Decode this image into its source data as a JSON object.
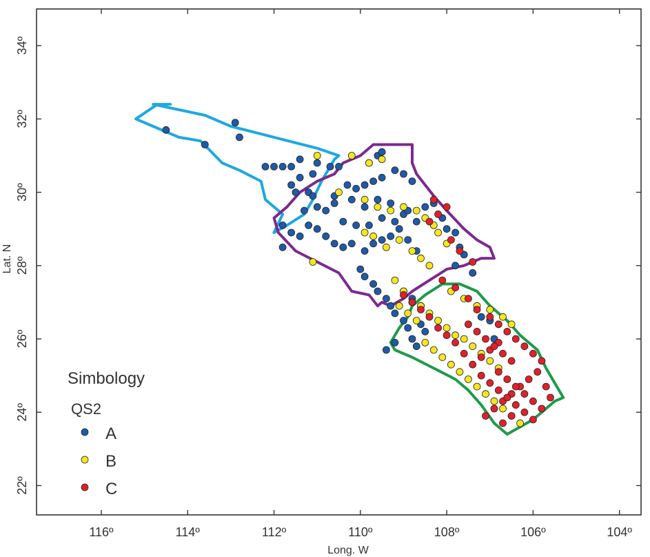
{
  "chart_data": {
    "type": "scatter",
    "xlabel": "Long. W",
    "ylabel": "Lat. N",
    "xlim": [
      117.5,
      103.5
    ],
    "ylim": [
      21.2,
      35.0
    ],
    "x_ticks": [
      116,
      114,
      112,
      110,
      108,
      106,
      104
    ],
    "x_tick_labels": [
      "116º",
      "114º",
      "112º",
      "110º",
      "108º",
      "106º",
      "104º"
    ],
    "y_ticks": [
      22,
      24,
      26,
      28,
      30,
      32,
      34
    ],
    "y_tick_labels": [
      "22º",
      "24º",
      "26º",
      "28º",
      "30º",
      "32º",
      "34º"
    ],
    "legend": {
      "title": "Simbology",
      "subtitle": "QS2",
      "placement": "bottom-left",
      "entries": [
        {
          "label": "A",
          "color": "#1f5aa8"
        },
        {
          "label": "B",
          "color": "#f5e61e"
        },
        {
          "label": "C",
          "color": "#e2202a"
        }
      ]
    },
    "regions": [
      {
        "color": "#1ea8e0",
        "points": [
          [
            114.4,
            32.4
          ],
          [
            114.8,
            32.4
          ],
          [
            113.6,
            32.1
          ],
          [
            113.0,
            31.8
          ],
          [
            112.0,
            31.5
          ],
          [
            111.0,
            31.2
          ],
          [
            110.5,
            31.0
          ],
          [
            110.6,
            30.9
          ],
          [
            110.9,
            30.3
          ],
          [
            111.1,
            29.8
          ],
          [
            111.3,
            29.4
          ],
          [
            111.7,
            29.1
          ],
          [
            112.0,
            28.9
          ],
          [
            111.8,
            29.4
          ],
          [
            112.2,
            29.8
          ],
          [
            112.3,
            30.3
          ],
          [
            112.8,
            30.6
          ],
          [
            113.2,
            30.8
          ],
          [
            113.7,
            31.4
          ],
          [
            114.2,
            31.5
          ],
          [
            114.8,
            31.8
          ],
          [
            115.2,
            32.0
          ],
          [
            114.7,
            32.4
          ],
          [
            114.4,
            32.4
          ]
        ]
      },
      {
        "color": "#7b2a8e",
        "points": [
          [
            109.7,
            31.3
          ],
          [
            108.8,
            31.3
          ],
          [
            108.8,
            30.8
          ],
          [
            108.7,
            30.5
          ],
          [
            108.5,
            30.2
          ],
          [
            108.3,
            29.9
          ],
          [
            108.0,
            29.5
          ],
          [
            107.6,
            29.0
          ],
          [
            107.3,
            28.7
          ],
          [
            107.0,
            28.5
          ],
          [
            106.9,
            28.2
          ],
          [
            107.2,
            28.2
          ],
          [
            107.6,
            28.0
          ],
          [
            108.0,
            27.9
          ],
          [
            108.4,
            27.6
          ],
          [
            108.8,
            27.3
          ],
          [
            109.0,
            27.1
          ],
          [
            109.3,
            26.9
          ],
          [
            109.5,
            27.0
          ],
          [
            109.6,
            26.9
          ],
          [
            109.8,
            27.2
          ],
          [
            110.2,
            27.3
          ],
          [
            110.5,
            27.8
          ],
          [
            111.0,
            28.1
          ],
          [
            111.5,
            28.4
          ],
          [
            111.9,
            28.9
          ],
          [
            112.0,
            29.3
          ],
          [
            111.7,
            29.6
          ],
          [
            111.4,
            30.0
          ],
          [
            111.0,
            30.3
          ],
          [
            110.6,
            30.5
          ],
          [
            110.4,
            30.8
          ],
          [
            110.0,
            31.0
          ],
          [
            109.7,
            31.3
          ]
        ]
      },
      {
        "color": "#1e9a4a",
        "points": [
          [
            108.1,
            27.5
          ],
          [
            107.7,
            27.5
          ],
          [
            107.3,
            27.3
          ],
          [
            107.0,
            26.9
          ],
          [
            106.6,
            26.5
          ],
          [
            106.3,
            26.1
          ],
          [
            105.9,
            25.7
          ],
          [
            105.7,
            25.2
          ],
          [
            105.5,
            24.8
          ],
          [
            105.3,
            24.4
          ],
          [
            105.5,
            24.3
          ],
          [
            105.7,
            24.1
          ],
          [
            106.0,
            23.8
          ],
          [
            106.3,
            23.6
          ],
          [
            106.6,
            23.4
          ],
          [
            106.9,
            23.7
          ],
          [
            107.2,
            24.2
          ],
          [
            107.5,
            24.6
          ],
          [
            107.8,
            24.9
          ],
          [
            108.3,
            25.2
          ],
          [
            108.8,
            25.5
          ],
          [
            109.2,
            25.7
          ],
          [
            109.3,
            25.9
          ],
          [
            109.1,
            26.3
          ],
          [
            108.9,
            26.6
          ],
          [
            108.8,
            26.9
          ],
          [
            108.5,
            27.2
          ],
          [
            108.1,
            27.5
          ]
        ]
      }
    ],
    "series": [
      {
        "name": "A",
        "color": "#1f5aa8",
        "points": [
          [
            114.5,
            31.7
          ],
          [
            113.6,
            31.3
          ],
          [
            112.9,
            31.9
          ],
          [
            112.8,
            31.5
          ],
          [
            112.2,
            30.7
          ],
          [
            112.0,
            30.7
          ],
          [
            111.8,
            30.7
          ],
          [
            111.6,
            30.7
          ],
          [
            111.4,
            30.9
          ],
          [
            111.1,
            30.5
          ],
          [
            111.0,
            30.8
          ],
          [
            110.7,
            30.7
          ],
          [
            110.5,
            30.7
          ],
          [
            109.8,
            30.8
          ],
          [
            109.6,
            31.0
          ],
          [
            109.5,
            31.1
          ],
          [
            111.6,
            30.2
          ],
          [
            111.4,
            30.4
          ],
          [
            111.5,
            30.0
          ],
          [
            111.2,
            30.0
          ],
          [
            111.1,
            29.9
          ],
          [
            111.0,
            29.6
          ],
          [
            110.8,
            29.5
          ],
          [
            110.6,
            29.7
          ],
          [
            110.6,
            29.9
          ],
          [
            110.2,
            29.8
          ],
          [
            109.9,
            29.6
          ],
          [
            109.6,
            29.8
          ],
          [
            109.3,
            29.7
          ],
          [
            109.0,
            29.4
          ],
          [
            108.7,
            29.2
          ],
          [
            110.3,
            30.2
          ],
          [
            110.1,
            30.1
          ],
          [
            109.9,
            30.2
          ],
          [
            109.7,
            30.3
          ],
          [
            109.5,
            30.4
          ],
          [
            109.2,
            30.6
          ],
          [
            109.0,
            30.5
          ],
          [
            108.8,
            30.3
          ],
          [
            111.8,
            29.1
          ],
          [
            111.6,
            28.9
          ],
          [
            111.4,
            28.8
          ],
          [
            111.2,
            29.1
          ],
          [
            111.0,
            29.0
          ],
          [
            110.8,
            28.8
          ],
          [
            110.6,
            28.6
          ],
          [
            110.4,
            28.5
          ],
          [
            110.2,
            28.6
          ],
          [
            109.9,
            28.4
          ],
          [
            109.7,
            28.6
          ],
          [
            109.5,
            28.7
          ],
          [
            109.3,
            28.8
          ],
          [
            109.1,
            29.0
          ],
          [
            108.9,
            28.7
          ],
          [
            108.7,
            28.4
          ],
          [
            110.0,
            27.9
          ],
          [
            109.9,
            27.7
          ],
          [
            109.7,
            27.5
          ],
          [
            109.6,
            27.3
          ],
          [
            109.4,
            27.1
          ],
          [
            109.3,
            26.9
          ],
          [
            109.2,
            26.7
          ],
          [
            109.0,
            26.5
          ],
          [
            108.9,
            26.3
          ],
          [
            108.8,
            26.0
          ],
          [
            108.7,
            25.8
          ],
          [
            109.2,
            25.9
          ],
          [
            109.4,
            25.7
          ],
          [
            108.6,
            26.4
          ],
          [
            108.5,
            26.2
          ],
          [
            109.0,
            27.3
          ],
          [
            108.8,
            27.1
          ],
          [
            108.6,
            26.9
          ],
          [
            107.7,
            28.5
          ],
          [
            107.6,
            28.3
          ],
          [
            107.8,
            28.0
          ],
          [
            107.4,
            27.8
          ],
          [
            107.2,
            26.6
          ],
          [
            107.0,
            26.5
          ],
          [
            106.9,
            26.0
          ],
          [
            111.8,
            28.5
          ],
          [
            111.3,
            29.5
          ],
          [
            110.4,
            29.2
          ],
          [
            110.1,
            29.1
          ],
          [
            109.8,
            29.1
          ],
          [
            109.5,
            29.3
          ],
          [
            109.2,
            29.2
          ],
          [
            108.9,
            29.5
          ],
          [
            108.5,
            29.6
          ],
          [
            108.3,
            29.7
          ],
          [
            108.1,
            29.3
          ],
          [
            108.0,
            29.0
          ],
          [
            107.8,
            28.9
          ]
        ]
      },
      {
        "color": "#f5e61e",
        "name": "B",
        "points": [
          [
            111.0,
            31.0
          ],
          [
            110.2,
            31.0
          ],
          [
            109.8,
            30.8
          ],
          [
            109.5,
            30.9
          ],
          [
            110.5,
            30.0
          ],
          [
            109.9,
            29.8
          ],
          [
            109.6,
            29.6
          ],
          [
            109.3,
            29.5
          ],
          [
            109.0,
            29.6
          ],
          [
            108.7,
            29.5
          ],
          [
            108.5,
            29.3
          ],
          [
            108.3,
            29.1
          ],
          [
            108.2,
            28.9
          ],
          [
            108.0,
            28.6
          ],
          [
            111.1,
            28.1
          ],
          [
            109.9,
            28.9
          ],
          [
            109.7,
            28.8
          ],
          [
            109.4,
            28.5
          ],
          [
            109.1,
            28.7
          ],
          [
            108.8,
            28.4
          ],
          [
            108.6,
            28.2
          ],
          [
            108.4,
            28.0
          ],
          [
            109.2,
            27.6
          ],
          [
            109.0,
            27.3
          ],
          [
            108.8,
            27.0
          ],
          [
            108.6,
            26.9
          ],
          [
            108.4,
            26.7
          ],
          [
            108.2,
            26.5
          ],
          [
            108.0,
            26.3
          ],
          [
            107.8,
            26.1
          ],
          [
            107.6,
            26.0
          ],
          [
            107.4,
            25.8
          ],
          [
            107.2,
            25.6
          ],
          [
            107.0,
            25.4
          ],
          [
            106.8,
            25.2
          ],
          [
            109.1,
            26.9
          ],
          [
            108.9,
            26.7
          ],
          [
            108.7,
            26.5
          ],
          [
            108.5,
            25.9
          ],
          [
            108.3,
            25.7
          ],
          [
            108.1,
            25.5
          ],
          [
            107.9,
            25.3
          ],
          [
            107.7,
            25.1
          ],
          [
            107.5,
            24.9
          ],
          [
            107.3,
            24.7
          ],
          [
            107.1,
            24.5
          ],
          [
            106.9,
            24.3
          ],
          [
            106.7,
            24.1
          ],
          [
            106.5,
            23.9
          ],
          [
            106.3,
            23.7
          ],
          [
            107.9,
            27.3
          ],
          [
            107.6,
            27.1
          ],
          [
            107.3,
            26.9
          ],
          [
            107.0,
            26.8
          ],
          [
            106.7,
            26.6
          ],
          [
            106.5,
            26.4
          ]
        ]
      },
      {
        "color": "#e2202a",
        "name": "C",
        "points": [
          [
            108.3,
            29.8
          ],
          [
            108.0,
            29.6
          ],
          [
            108.2,
            29.4
          ],
          [
            108.4,
            29.2
          ],
          [
            107.9,
            28.7
          ],
          [
            107.7,
            28.4
          ],
          [
            107.4,
            28.1
          ],
          [
            108.1,
            27.6
          ],
          [
            107.8,
            27.4
          ],
          [
            107.5,
            27.1
          ],
          [
            107.3,
            26.8
          ],
          [
            107.0,
            26.6
          ],
          [
            106.8,
            26.4
          ],
          [
            106.6,
            26.2
          ],
          [
            106.4,
            26.0
          ],
          [
            106.2,
            25.8
          ],
          [
            106.0,
            25.6
          ],
          [
            105.8,
            25.4
          ],
          [
            105.9,
            25.1
          ],
          [
            106.1,
            24.9
          ],
          [
            106.3,
            24.7
          ],
          [
            106.5,
            24.5
          ],
          [
            106.7,
            24.3
          ],
          [
            106.9,
            24.1
          ],
          [
            107.1,
            23.9
          ],
          [
            106.8,
            25.1
          ],
          [
            106.6,
            24.9
          ],
          [
            106.4,
            24.7
          ],
          [
            106.2,
            24.5
          ],
          [
            106.0,
            24.3
          ],
          [
            105.8,
            24.1
          ],
          [
            105.6,
            24.4
          ],
          [
            105.7,
            24.7
          ],
          [
            107.2,
            25.0
          ],
          [
            107.0,
            24.8
          ],
          [
            106.8,
            24.6
          ],
          [
            106.6,
            24.4
          ],
          [
            106.4,
            24.2
          ],
          [
            106.2,
            24.0
          ],
          [
            106.0,
            23.8
          ],
          [
            106.7,
            23.7
          ],
          [
            106.5,
            23.9
          ],
          [
            107.4,
            25.3
          ],
          [
            107.2,
            25.5
          ],
          [
            107.0,
            25.7
          ],
          [
            106.8,
            25.9
          ],
          [
            107.6,
            25.6
          ],
          [
            107.8,
            25.9
          ],
          [
            108.0,
            26.1
          ],
          [
            108.2,
            26.3
          ],
          [
            108.4,
            26.6
          ],
          [
            108.6,
            26.8
          ],
          [
            108.8,
            27.0
          ],
          [
            109.0,
            27.2
          ],
          [
            107.5,
            26.4
          ],
          [
            107.3,
            26.2
          ],
          [
            107.1,
            26.0
          ],
          [
            106.9,
            25.8
          ],
          [
            106.7,
            25.6
          ],
          [
            106.5,
            25.4
          ]
        ]
      }
    ]
  }
}
